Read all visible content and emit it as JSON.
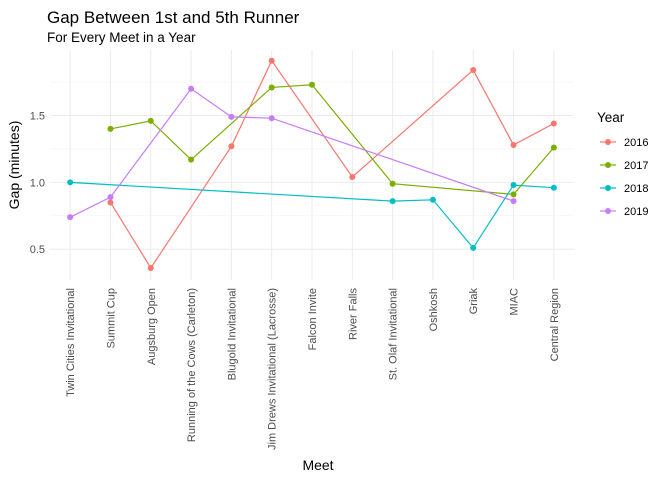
{
  "chart_data": {
    "type": "line",
    "title": "Gap Between 1st and 5th Runner",
    "subtitle": "For Every Meet in a Year",
    "xlabel": "Meet",
    "ylabel": "Gap (minutes)",
    "ylim": [
      0.27,
      1.99
    ],
    "yticks": [
      "0.5",
      "1.0",
      "1.5"
    ],
    "ytick_values": [
      0.5,
      1.0,
      1.5
    ],
    "grid": true,
    "legend_title": "Year",
    "legend_position": "right",
    "categories": [
      "Twin Cities Invitational",
      "Summit Cup",
      "Augsburg Open",
      "Running of the Cows (Carleton)",
      "Blugold Invitational",
      "Jim Drews Invitational (Lacrosse)",
      "Falcon Invite",
      "River Falls",
      "St. Olaf Invitational",
      "Oshkosh",
      "Griak",
      "MIAC",
      "Central Region"
    ],
    "series": [
      {
        "name": "2016",
        "color": "#F8766D",
        "points": [
          {
            "x": "Summit Cup",
            "y": 0.85
          },
          {
            "x": "Augsburg Open",
            "y": 0.36
          },
          {
            "x": "Blugold Invitational",
            "y": 1.27
          },
          {
            "x": "Jim Drews Invitational (Lacrosse)",
            "y": 1.91
          },
          {
            "x": "River Falls",
            "y": 1.04
          },
          {
            "x": "Griak",
            "y": 1.84
          },
          {
            "x": "MIAC",
            "y": 1.28
          },
          {
            "x": "Central Region",
            "y": 1.44
          }
        ]
      },
      {
        "name": "2017",
        "color": "#7CAE00",
        "points": [
          {
            "x": "Summit Cup",
            "y": 1.4
          },
          {
            "x": "Augsburg Open",
            "y": 1.46
          },
          {
            "x": "Running of the Cows (Carleton)",
            "y": 1.17
          },
          {
            "x": "Jim Drews Invitational (Lacrosse)",
            "y": 1.71
          },
          {
            "x": "Falcon Invite",
            "y": 1.73
          },
          {
            "x": "St. Olaf Invitational",
            "y": 0.99
          },
          {
            "x": "MIAC",
            "y": 0.91
          },
          {
            "x": "Central Region",
            "y": 1.26
          }
        ]
      },
      {
        "name": "2018",
        "color": "#00BFC4",
        "points": [
          {
            "x": "Twin Cities Invitational",
            "y": 1.0
          },
          {
            "x": "St. Olaf Invitational",
            "y": 0.86
          },
          {
            "x": "Oshkosh",
            "y": 0.87
          },
          {
            "x": "Griak",
            "y": 0.51
          },
          {
            "x": "MIAC",
            "y": 0.98
          },
          {
            "x": "Central Region",
            "y": 0.96
          }
        ]
      },
      {
        "name": "2019",
        "color": "#C77CFF",
        "points": [
          {
            "x": "Twin Cities Invitational",
            "y": 0.74
          },
          {
            "x": "Summit Cup",
            "y": 0.89
          },
          {
            "x": "Running of the Cows (Carleton)",
            "y": 1.7
          },
          {
            "x": "Blugold Invitational",
            "y": 1.49
          },
          {
            "x": "Jim Drews Invitational (Lacrosse)",
            "y": 1.48
          },
          {
            "x": "MIAC",
            "y": 0.86
          }
        ]
      }
    ]
  }
}
